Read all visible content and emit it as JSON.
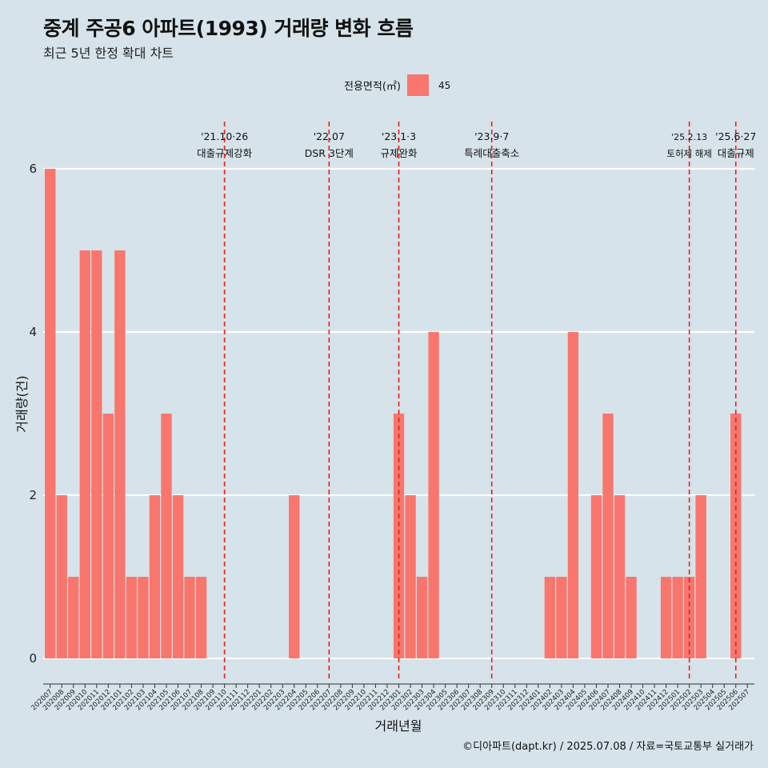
{
  "header": {
    "title": "중계 주공6 아파트(1993) 거래량 변화 흐름",
    "subtitle": "최근 5년 한정 확대 차트"
  },
  "legend": {
    "title": "전용면적(㎡)",
    "item": "45",
    "color": "#f8766d"
  },
  "caption": "©디아파트(dapt.kr) / 2025.07.08 / 자료=국토교통부 실거래가",
  "colors": {
    "background": "#d6e3ea",
    "bar": "#f8766d",
    "event_line": "#ee1c1c",
    "grid": "#ffffff"
  },
  "chart_data": {
    "type": "bar",
    "xlabel": "거래년월",
    "ylabel": "거래량(건)",
    "ylim": [
      0,
      6
    ],
    "yticks": [
      0,
      2,
      4,
      6
    ],
    "grid": "horizontal major lines",
    "legend_position": "top",
    "categories": [
      "202007",
      "202008",
      "202009",
      "202010",
      "202011",
      "202012",
      "202101",
      "202102",
      "202103",
      "202104",
      "202105",
      "202106",
      "202107",
      "202108",
      "202109",
      "202110",
      "202111",
      "202112",
      "202201",
      "202202",
      "202203",
      "202204",
      "202205",
      "202206",
      "202207",
      "202208",
      "202209",
      "202210",
      "202211",
      "202212",
      "202301",
      "202302",
      "202303",
      "202304",
      "202305",
      "202306",
      "202307",
      "202308",
      "202309",
      "202310",
      "202311",
      "202312",
      "202401",
      "202402",
      "202403",
      "202404",
      "202405",
      "202406",
      "202407",
      "202408",
      "202409",
      "202410",
      "202411",
      "202412",
      "202501",
      "202502",
      "202503",
      "202504",
      "202505",
      "202506",
      "202507"
    ],
    "series": [
      {
        "name": "45",
        "values": [
          6,
          2,
          1,
          5,
          5,
          3,
          5,
          1,
          1,
          2,
          3,
          2,
          1,
          1,
          0,
          0,
          0,
          0,
          0,
          0,
          0,
          2,
          0,
          0,
          0,
          0,
          0,
          0,
          0,
          0,
          3,
          2,
          1,
          4,
          0,
          0,
          0,
          0,
          0,
          0,
          0,
          0,
          0,
          1,
          1,
          4,
          0,
          2,
          3,
          2,
          1,
          0,
          0,
          1,
          1,
          1,
          2,
          0,
          0,
          3,
          0
        ]
      }
    ],
    "events": [
      {
        "date": "'21.10·26",
        "label": "대출규제강화",
        "x": "202110"
      },
      {
        "date": "'22.07",
        "label": "DSR 3단계",
        "x": "202207"
      },
      {
        "date": "'23.1·3",
        "label": "규제완화",
        "x": "202301"
      },
      {
        "date": "'23.9·7",
        "label": "특례대출축소",
        "x": "202309"
      },
      {
        "date": "'25.2.13",
        "label": "토허제 해제",
        "x": "202502"
      },
      {
        "date": "'25.6·27",
        "label": "대출규제",
        "x": "202506"
      }
    ]
  }
}
